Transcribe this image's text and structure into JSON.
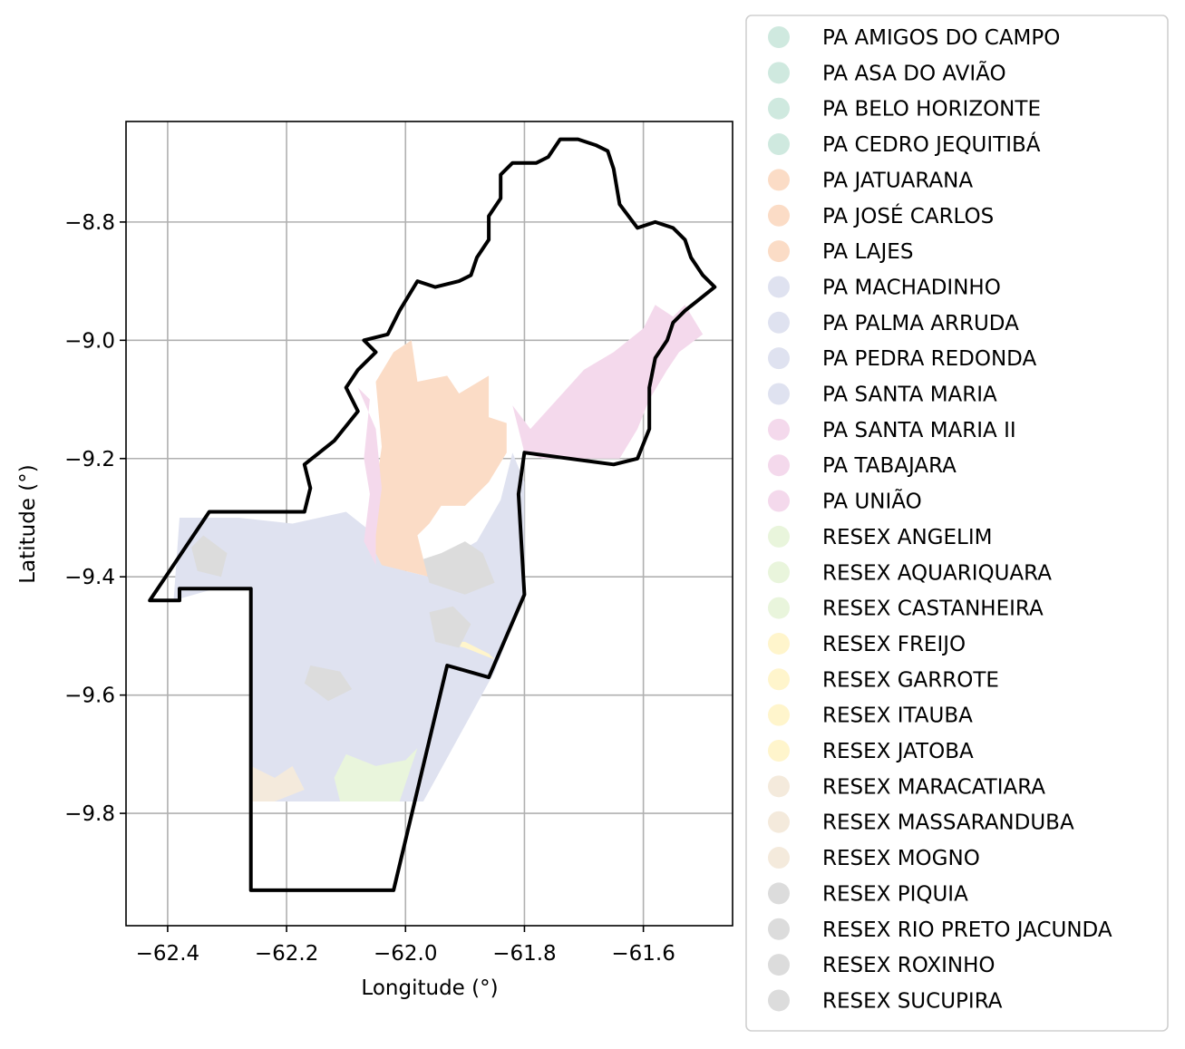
{
  "chart_data": {
    "type": "map",
    "xlabel": "Longitude (°)",
    "ylabel": "Latitude (°)",
    "xlim": [
      -62.47,
      -61.45
    ],
    "ylim": [
      -9.99,
      -8.63
    ],
    "x_ticks": [
      -62.4,
      -62.2,
      -62.0,
      -61.8,
      -61.6
    ],
    "y_ticks": [
      -8.8,
      -9.0,
      -9.2,
      -9.4,
      -9.6,
      -9.8
    ],
    "x_tick_labels": [
      "−62.4",
      "−62.2",
      "−62.0",
      "−61.8",
      "−61.6"
    ],
    "y_tick_labels": [
      "−8.8",
      "−9.0",
      "−9.2",
      "−9.4",
      "−9.6",
      "−9.8"
    ],
    "grid": true,
    "legend_position": "outside-right",
    "boundary_color": "#000000",
    "legend": [
      {
        "label": "PA AMIGOS DO CAMPO",
        "color": "#cfe9df"
      },
      {
        "label": "PA ASA DO AVIÃO",
        "color": "#cfe9df"
      },
      {
        "label": "PA BELO HORIZONTE",
        "color": "#cfe9df"
      },
      {
        "label": "PA CEDRO JEQUITIBÁ",
        "color": "#cfe9df"
      },
      {
        "label": "PA JATUARANA",
        "color": "#fbdcc6"
      },
      {
        "label": "PA JOSÉ CARLOS",
        "color": "#fbdcc6"
      },
      {
        "label": "PA LAJES",
        "color": "#fbdcc6"
      },
      {
        "label": "PA MACHADINHO",
        "color": "#dfe2f0"
      },
      {
        "label": "PA PALMA ARRUDA",
        "color": "#dfe2f0"
      },
      {
        "label": "PA PEDRA REDONDA",
        "color": "#dfe2f0"
      },
      {
        "label": "PA SANTA MARIA",
        "color": "#dfe2f0"
      },
      {
        "label": "PA SANTA MARIA II",
        "color": "#f4d9ec"
      },
      {
        "label": "PA TABAJARA",
        "color": "#f4d9ec"
      },
      {
        "label": "PA UNIÃO",
        "color": "#f4d9ec"
      },
      {
        "label": "RESEX ANGELIM",
        "color": "#e9f5dc"
      },
      {
        "label": "RESEX AQUARIQUARA",
        "color": "#e9f5dc"
      },
      {
        "label": "RESEX CASTANHEIRA",
        "color": "#e9f5dc"
      },
      {
        "label": "RESEX FREIJO",
        "color": "#fff5cc"
      },
      {
        "label": "RESEX GARROTE",
        "color": "#fff5cc"
      },
      {
        "label": "RESEX ITAUBA",
        "color": "#fff5cc"
      },
      {
        "label": "RESEX JATOBA",
        "color": "#fff5cc"
      },
      {
        "label": "RESEX MARACATIARA",
        "color": "#f4eadc"
      },
      {
        "label": "RESEX MASSARANDUBA",
        "color": "#f4eadc"
      },
      {
        "label": "RESEX MOGNO",
        "color": "#f4eadc"
      },
      {
        "label": "RESEX PIQUIA",
        "color": "#dcdcdc"
      },
      {
        "label": "RESEX RIO PRETO JACUNDA",
        "color": "#dcdcdc"
      },
      {
        "label": "RESEX ROXINHO",
        "color": "#dcdcdc"
      },
      {
        "label": "RESEX SUCUPIRA",
        "color": "#dcdcdc"
      }
    ],
    "regions": [
      {
        "name": "PA MACHADINHO",
        "color": "#dfe2f0",
        "coords": [
          [
            -62.38,
            -9.3
          ],
          [
            -62.28,
            -9.3
          ],
          [
            -62.19,
            -9.31
          ],
          [
            -62.1,
            -9.29
          ],
          [
            -62.05,
            -9.33
          ],
          [
            -62.04,
            -9.37
          ],
          [
            -62.0,
            -9.39
          ],
          [
            -61.96,
            -9.4
          ],
          [
            -61.93,
            -9.37
          ],
          [
            -61.88,
            -9.34
          ],
          [
            -61.84,
            -9.27
          ],
          [
            -61.82,
            -9.19
          ],
          [
            -61.8,
            -9.24
          ],
          [
            -61.8,
            -9.43
          ],
          [
            -61.85,
            -9.56
          ],
          [
            -61.97,
            -9.78
          ],
          [
            -62.26,
            -9.78
          ],
          [
            -62.26,
            -9.42
          ],
          [
            -62.32,
            -9.42
          ],
          [
            -62.39,
            -9.44
          ]
        ]
      },
      {
        "name": "PA JATUARANA",
        "color": "#fbdcc6",
        "coords": [
          [
            -62.05,
            -9.07
          ],
          [
            -62.02,
            -9.02
          ],
          [
            -61.99,
            -9.0
          ],
          [
            -61.98,
            -9.07
          ],
          [
            -61.93,
            -9.06
          ],
          [
            -61.91,
            -9.09
          ],
          [
            -61.86,
            -9.06
          ],
          [
            -61.86,
            -9.13
          ],
          [
            -61.83,
            -9.14
          ],
          [
            -61.83,
            -9.19
          ],
          [
            -61.86,
            -9.24
          ],
          [
            -61.9,
            -9.28
          ],
          [
            -61.94,
            -9.28
          ],
          [
            -61.96,
            -9.31
          ],
          [
            -61.98,
            -9.33
          ],
          [
            -61.97,
            -9.37
          ],
          [
            -61.96,
            -9.4
          ],
          [
            -62.0,
            -9.39
          ],
          [
            -62.04,
            -9.38
          ],
          [
            -62.06,
            -9.34
          ],
          [
            -62.05,
            -9.25
          ],
          [
            -62.04,
            -9.18
          ]
        ]
      },
      {
        "name": "PA TABAJARA",
        "color": "#f4d9ec",
        "coords": [
          [
            -62.08,
            -9.08
          ],
          [
            -62.06,
            -9.1
          ],
          [
            -62.07,
            -9.2
          ],
          [
            -62.06,
            -9.26
          ],
          [
            -62.07,
            -9.34
          ],
          [
            -62.05,
            -9.38
          ],
          [
            -62.05,
            -9.33
          ],
          [
            -62.04,
            -9.25
          ],
          [
            -62.05,
            -9.15
          ]
        ]
      },
      {
        "name": "PA SANTA MARIA II",
        "color": "#f4d9ec",
        "coords": [
          [
            -61.82,
            -9.11
          ],
          [
            -61.79,
            -9.15
          ],
          [
            -61.7,
            -9.05
          ],
          [
            -61.65,
            -9.02
          ],
          [
            -61.6,
            -8.98
          ],
          [
            -61.58,
            -8.94
          ],
          [
            -61.55,
            -8.96
          ],
          [
            -61.53,
            -8.94
          ],
          [
            -61.5,
            -8.99
          ],
          [
            -61.54,
            -9.02
          ],
          [
            -61.56,
            -9.05
          ],
          [
            -61.59,
            -9.1
          ],
          [
            -61.61,
            -9.15
          ],
          [
            -61.64,
            -9.2
          ],
          [
            -61.77,
            -9.2
          ],
          [
            -61.8,
            -9.19
          ]
        ]
      },
      {
        "name": "RESEX CASTANHEIRA",
        "color": "#e9f5dc",
        "coords": [
          [
            -62.11,
            -9.78
          ],
          [
            -62.01,
            -9.78
          ],
          [
            -61.99,
            -9.72
          ],
          [
            -61.98,
            -9.69
          ],
          [
            -62.0,
            -9.71
          ],
          [
            -62.05,
            -9.72
          ],
          [
            -62.1,
            -9.7
          ],
          [
            -62.12,
            -9.74
          ]
        ]
      },
      {
        "name": "RESEX FREIJO",
        "color": "#fff5cc",
        "coords": [
          [
            -61.94,
            -9.51
          ],
          [
            -61.9,
            -9.52
          ],
          [
            -61.85,
            -9.54
          ],
          [
            -61.86,
            -9.53
          ],
          [
            -61.9,
            -9.51
          ]
        ]
      },
      {
        "name": "RESEX MARACATIARA",
        "color": "#f4eadc",
        "coords": [
          [
            -62.26,
            -9.72
          ],
          [
            -62.22,
            -9.74
          ],
          [
            -62.19,
            -9.72
          ],
          [
            -62.17,
            -9.76
          ],
          [
            -62.22,
            -9.78
          ],
          [
            -62.26,
            -9.78
          ]
        ]
      },
      {
        "name": "RESEX RIO PRETO JACUNDA",
        "color": "#dcdcdc",
        "coords": [
          [
            -61.97,
            -9.37
          ],
          [
            -61.94,
            -9.36
          ],
          [
            -61.9,
            -9.34
          ],
          [
            -61.87,
            -9.36
          ],
          [
            -61.85,
            -9.41
          ],
          [
            -61.9,
            -9.43
          ],
          [
            -61.96,
            -9.41
          ]
        ]
      },
      {
        "name": "RESEX PIQUIA",
        "color": "#dcdcdc",
        "coords": [
          [
            -62.34,
            -9.33
          ],
          [
            -62.3,
            -9.36
          ],
          [
            -62.31,
            -9.4
          ],
          [
            -62.35,
            -9.39
          ],
          [
            -62.36,
            -9.35
          ]
        ]
      },
      {
        "name": "RESEX ROXINHO",
        "color": "#dcdcdc",
        "coords": [
          [
            -62.16,
            -9.55
          ],
          [
            -62.11,
            -9.56
          ],
          [
            -62.09,
            -9.59
          ],
          [
            -62.13,
            -9.61
          ],
          [
            -62.17,
            -9.58
          ]
        ]
      },
      {
        "name": "RESEX SUCUPIRA",
        "color": "#dcdcdc",
        "coords": [
          [
            -61.96,
            -9.46
          ],
          [
            -61.92,
            -9.45
          ],
          [
            -61.89,
            -9.48
          ],
          [
            -61.91,
            -9.52
          ],
          [
            -61.95,
            -9.51
          ]
        ]
      }
    ],
    "boundary": [
      [
        -62.43,
        -9.44
      ],
      [
        -62.33,
        -9.29
      ],
      [
        -62.17,
        -9.29
      ],
      [
        -62.16,
        -9.25
      ],
      [
        -62.17,
        -9.21
      ],
      [
        -62.12,
        -9.17
      ],
      [
        -62.08,
        -9.12
      ],
      [
        -62.1,
        -9.08
      ],
      [
        -62.08,
        -9.05
      ],
      [
        -62.05,
        -9.02
      ],
      [
        -62.07,
        -9.0
      ],
      [
        -62.03,
        -8.99
      ],
      [
        -62.01,
        -8.95
      ],
      [
        -61.98,
        -8.9
      ],
      [
        -61.95,
        -8.91
      ],
      [
        -61.91,
        -8.9
      ],
      [
        -61.89,
        -8.89
      ],
      [
        -61.88,
        -8.86
      ],
      [
        -61.86,
        -8.83
      ],
      [
        -61.86,
        -8.79
      ],
      [
        -61.84,
        -8.76
      ],
      [
        -61.84,
        -8.72
      ],
      [
        -61.82,
        -8.7
      ],
      [
        -61.78,
        -8.7
      ],
      [
        -61.76,
        -8.69
      ],
      [
        -61.74,
        -8.66
      ],
      [
        -61.71,
        -8.66
      ],
      [
        -61.68,
        -8.67
      ],
      [
        -61.66,
        -8.68
      ],
      [
        -61.65,
        -8.71
      ],
      [
        -61.64,
        -8.77
      ],
      [
        -61.61,
        -8.81
      ],
      [
        -61.58,
        -8.8
      ],
      [
        -61.55,
        -8.81
      ],
      [
        -61.53,
        -8.83
      ],
      [
        -61.52,
        -8.86
      ],
      [
        -61.5,
        -8.89
      ],
      [
        -61.48,
        -8.91
      ],
      [
        -61.53,
        -8.95
      ],
      [
        -61.55,
        -8.97
      ],
      [
        -61.56,
        -9.0
      ],
      [
        -61.58,
        -9.03
      ],
      [
        -61.59,
        -9.08
      ],
      [
        -61.59,
        -9.15
      ],
      [
        -61.61,
        -9.2
      ],
      [
        -61.65,
        -9.21
      ],
      [
        -61.8,
        -9.19
      ],
      [
        -61.81,
        -9.26
      ],
      [
        -61.8,
        -9.43
      ],
      [
        -61.86,
        -9.57
      ],
      [
        -61.93,
        -9.55
      ],
      [
        -62.02,
        -9.93
      ],
      [
        -62.26,
        -9.93
      ],
      [
        -62.26,
        -9.42
      ],
      [
        -62.38,
        -9.42
      ],
      [
        -62.38,
        -9.44
      ],
      [
        -62.43,
        -9.44
      ]
    ]
  }
}
